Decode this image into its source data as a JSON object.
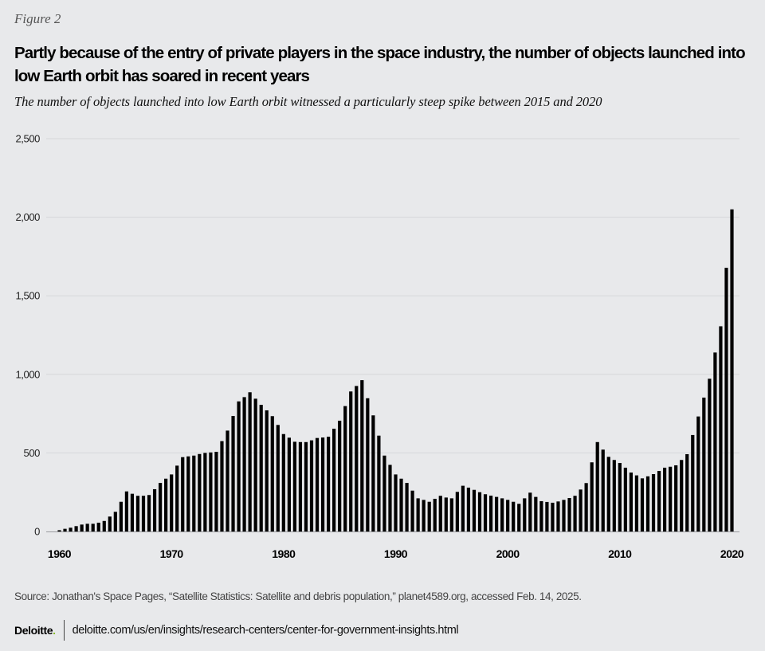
{
  "figure_label": "Figure 2",
  "title": "Partly because of the entry of private players in the space industry, the number of objects launched into low Earth orbit has soared in recent years",
  "subtitle": "The number of objects launched into low Earth orbit witnessed a particularly steep spike between 2015 and 2020",
  "source": "Source: Jonathan's Space Pages, “Satellite Statistics: Satellite and debris population,” planet4589.org, accessed Feb. 14, 2025.",
  "footer": {
    "logo_text": "Deloitte",
    "logo_dot": ".",
    "url": "deloitte.com/us/en/insights/research-centers/center-for-government-insights.html"
  },
  "colors": {
    "background": "#e8e9eb",
    "bar": "#000000",
    "gridline": "#d6d7da",
    "logo_accent": "#86bc25"
  },
  "chart_data": {
    "type": "bar",
    "title": "Partly because of the entry of private players in the space industry, the number of objects launched into low Earth orbit has soared in recent years",
    "xlabel": "",
    "ylabel": "",
    "x_start": 1960,
    "x_step": 0.5,
    "xlim": [
      1960,
      2020
    ],
    "ylim": [
      0,
      2500
    ],
    "y_ticks": [
      0,
      500,
      1000,
      1500,
      2000,
      2500
    ],
    "y_tick_labels": [
      "0",
      "500",
      "1,000",
      "1,500",
      "2,000",
      "2,500"
    ],
    "x_ticks": [
      1960,
      1970,
      1980,
      1990,
      2000,
      2010,
      2020
    ],
    "x_tick_labels": [
      "1960",
      "1970",
      "1980",
      "1990",
      "2000",
      "2010",
      "2020"
    ],
    "grid": true,
    "legend": "none",
    "values": [
      8,
      17,
      24,
      34,
      44,
      49,
      49,
      56,
      67,
      95,
      125,
      189,
      255,
      240,
      227,
      227,
      232,
      269,
      309,
      336,
      363,
      419,
      473,
      478,
      483,
      493,
      500,
      503,
      507,
      575,
      642,
      735,
      828,
      855,
      886,
      845,
      806,
      771,
      734,
      678,
      620,
      597,
      571,
      569,
      569,
      580,
      595,
      598,
      603,
      654,
      705,
      798,
      891,
      926,
      963,
      848,
      739,
      610,
      483,
      424,
      363,
      336,
      309,
      260,
      211,
      201,
      189,
      208,
      227,
      216,
      211,
      252,
      291,
      279,
      265,
      250,
      237,
      228,
      220,
      211,
      201,
      189,
      176,
      211,
      247,
      220,
      193,
      188,
      183,
      191,
      201,
      213,
      227,
      267,
      308,
      440,
      569,
      521,
      475,
      455,
      436,
      406,
      375,
      357,
      338,
      351,
      365,
      385,
      406,
      412,
      421,
      455,
      492,
      614,
      732,
      852,
      972,
      1139,
      1306,
      1678,
      2050
    ]
  }
}
